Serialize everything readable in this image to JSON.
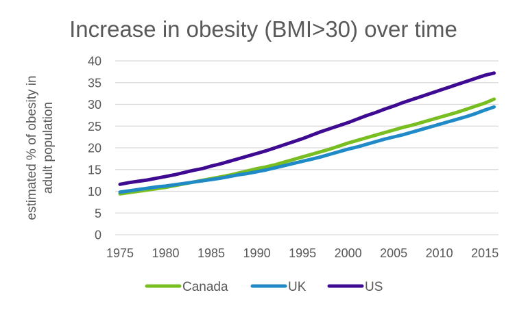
{
  "chart_data": {
    "type": "line",
    "title": "Increase in obesity (BMI>30) over time",
    "xlabel": "",
    "ylabel": "estimated % of obesity in adult population",
    "ylabel_lines": [
      "estimated % of obesity in",
      "adult population"
    ],
    "ylim": [
      0,
      40
    ],
    "yticks": [
      0,
      5,
      10,
      15,
      20,
      25,
      30,
      35,
      40
    ],
    "xlim": [
      1975,
      2016
    ],
    "xticks": [
      1975,
      1980,
      1985,
      1990,
      1995,
      2000,
      2005,
      2010,
      2015
    ],
    "grid": true,
    "legend_position": "bottom",
    "x": [
      1975,
      1976,
      1977,
      1978,
      1979,
      1980,
      1981,
      1982,
      1983,
      1984,
      1985,
      1986,
      1987,
      1988,
      1989,
      1990,
      1991,
      1992,
      1993,
      1994,
      1995,
      1996,
      1997,
      1998,
      1999,
      2000,
      2001,
      2002,
      2003,
      2004,
      2005,
      2006,
      2007,
      2008,
      2009,
      2010,
      2011,
      2012,
      2013,
      2014,
      2015,
      2016
    ],
    "series": [
      {
        "name": "Canada",
        "color": "#78BE20",
        "values": [
          9.4,
          9.7,
          10.0,
          10.3,
          10.6,
          10.9,
          11.3,
          11.7,
          12.1,
          12.5,
          12.9,
          13.3,
          13.7,
          14.2,
          14.7,
          15.2,
          15.6,
          16.1,
          16.7,
          17.3,
          17.9,
          18.5,
          19.1,
          19.7,
          20.4,
          21.1,
          21.7,
          22.3,
          22.9,
          23.5,
          24.1,
          24.7,
          25.2,
          25.8,
          26.4,
          27.0,
          27.6,
          28.2,
          28.9,
          29.6,
          30.3,
          31.2
        ]
      },
      {
        "name": "UK",
        "color": "#1F8AC6",
        "values": [
          9.8,
          10.1,
          10.4,
          10.7,
          11.0,
          11.2,
          11.5,
          11.8,
          12.1,
          12.4,
          12.7,
          13.0,
          13.4,
          13.8,
          14.1,
          14.5,
          14.9,
          15.4,
          15.9,
          16.4,
          16.9,
          17.4,
          17.9,
          18.5,
          19.1,
          19.7,
          20.2,
          20.8,
          21.4,
          22.0,
          22.5,
          23.0,
          23.6,
          24.2,
          24.8,
          25.4,
          26.0,
          26.6,
          27.2,
          27.9,
          28.7,
          29.4
        ]
      },
      {
        "name": "US",
        "color": "#3E0A91",
        "values": [
          11.6,
          12.0,
          12.3,
          12.6,
          13.0,
          13.4,
          13.8,
          14.3,
          14.8,
          15.2,
          15.8,
          16.3,
          16.9,
          17.5,
          18.1,
          18.7,
          19.3,
          20.0,
          20.7,
          21.4,
          22.1,
          22.9,
          23.7,
          24.4,
          25.1,
          25.8,
          26.6,
          27.4,
          28.1,
          28.9,
          29.6,
          30.4,
          31.1,
          31.8,
          32.5,
          33.2,
          33.9,
          34.6,
          35.3,
          36.0,
          36.7,
          37.2
        ]
      }
    ]
  }
}
